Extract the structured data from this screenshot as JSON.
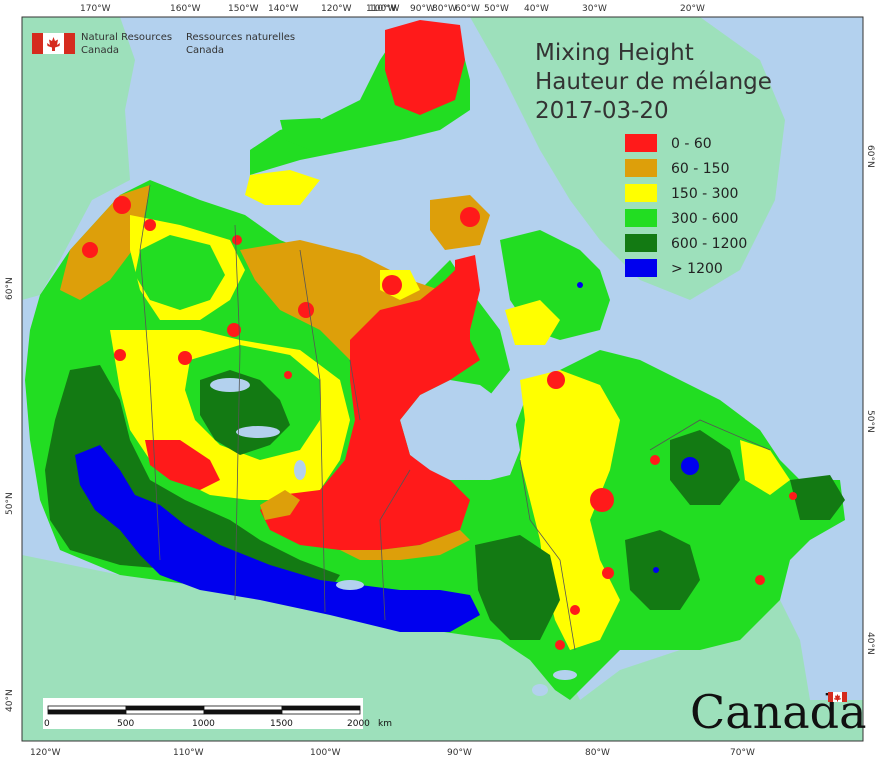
{
  "map": {
    "title_en": "Mixing Height",
    "title_fr": "Hauteur de mélange",
    "date": "2017-03-20",
    "colors": {
      "ocean": "#b3d1ee",
      "land": "#9de0bb",
      "border": "#555555"
    },
    "legend": [
      {
        "label": "0 - 60",
        "color": "#ff1a1a"
      },
      {
        "label": "60 - 150",
        "color": "#dd9f0a"
      },
      {
        "label": "150 - 300",
        "color": "#ffff00"
      },
      {
        "label": "300 - 600",
        "color": "#22dd22"
      },
      {
        "label": "600 - 1200",
        "color": "#137a13"
      },
      {
        "label": "> 1200",
        "color": "#0000ee"
      }
    ],
    "agency_en_1": "Natural Resources",
    "agency_en_2": "Canada",
    "agency_fr_1": "Ressources naturelles",
    "agency_fr_2": "Canada",
    "wordmark": "Canada",
    "scale": {
      "ticks": [
        "0",
        "500",
        "1000",
        "1500",
        "2000"
      ],
      "unit": "km"
    },
    "top_longitudes": [
      "170°W",
      "160°W",
      "150°W",
      "140°W",
      "120°W",
      "110°W",
      "100°W",
      "90°W",
      "80°W",
      "60°W",
      "50°W",
      "40°W",
      "30°W",
      "20°W"
    ],
    "bottom_longitudes": [
      "120°W",
      "110°W",
      "100°W",
      "90°W",
      "80°W",
      "70°W"
    ],
    "left_latitudes": [
      "60°N",
      "50°N",
      "40°N"
    ],
    "right_latitudes": [
      "60°N",
      "50°N",
      "40°N"
    ]
  }
}
